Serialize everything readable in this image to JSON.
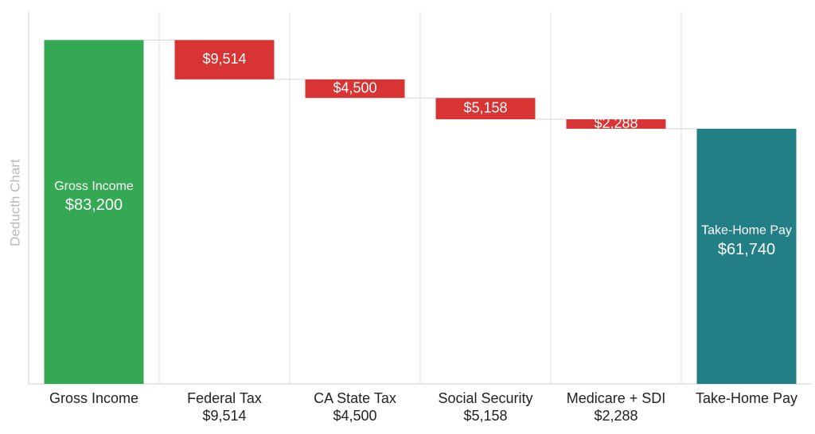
{
  "chart_data": {
    "type": "waterfall",
    "y_label": "Deducth Chart",
    "categories": [
      "Gross Income",
      "Federal Tax",
      "CA State Tax",
      "Social Security",
      "Medicare + SDI",
      "Take-Home Pay"
    ],
    "values": [
      83200,
      9514,
      4500,
      5158,
      2288,
      61740
    ],
    "value_labels": [
      "$83,200",
      "$9,514",
      "$4,500",
      "$5,158",
      "$2,288",
      "$61,740"
    ],
    "measure": [
      "absolute",
      "relative",
      "relative",
      "relative",
      "relative",
      "total"
    ],
    "colors": {
      "absolute": "#34a853",
      "relative": "#d93434",
      "total": "#237f86"
    },
    "ylim": [
      0,
      90000
    ]
  }
}
